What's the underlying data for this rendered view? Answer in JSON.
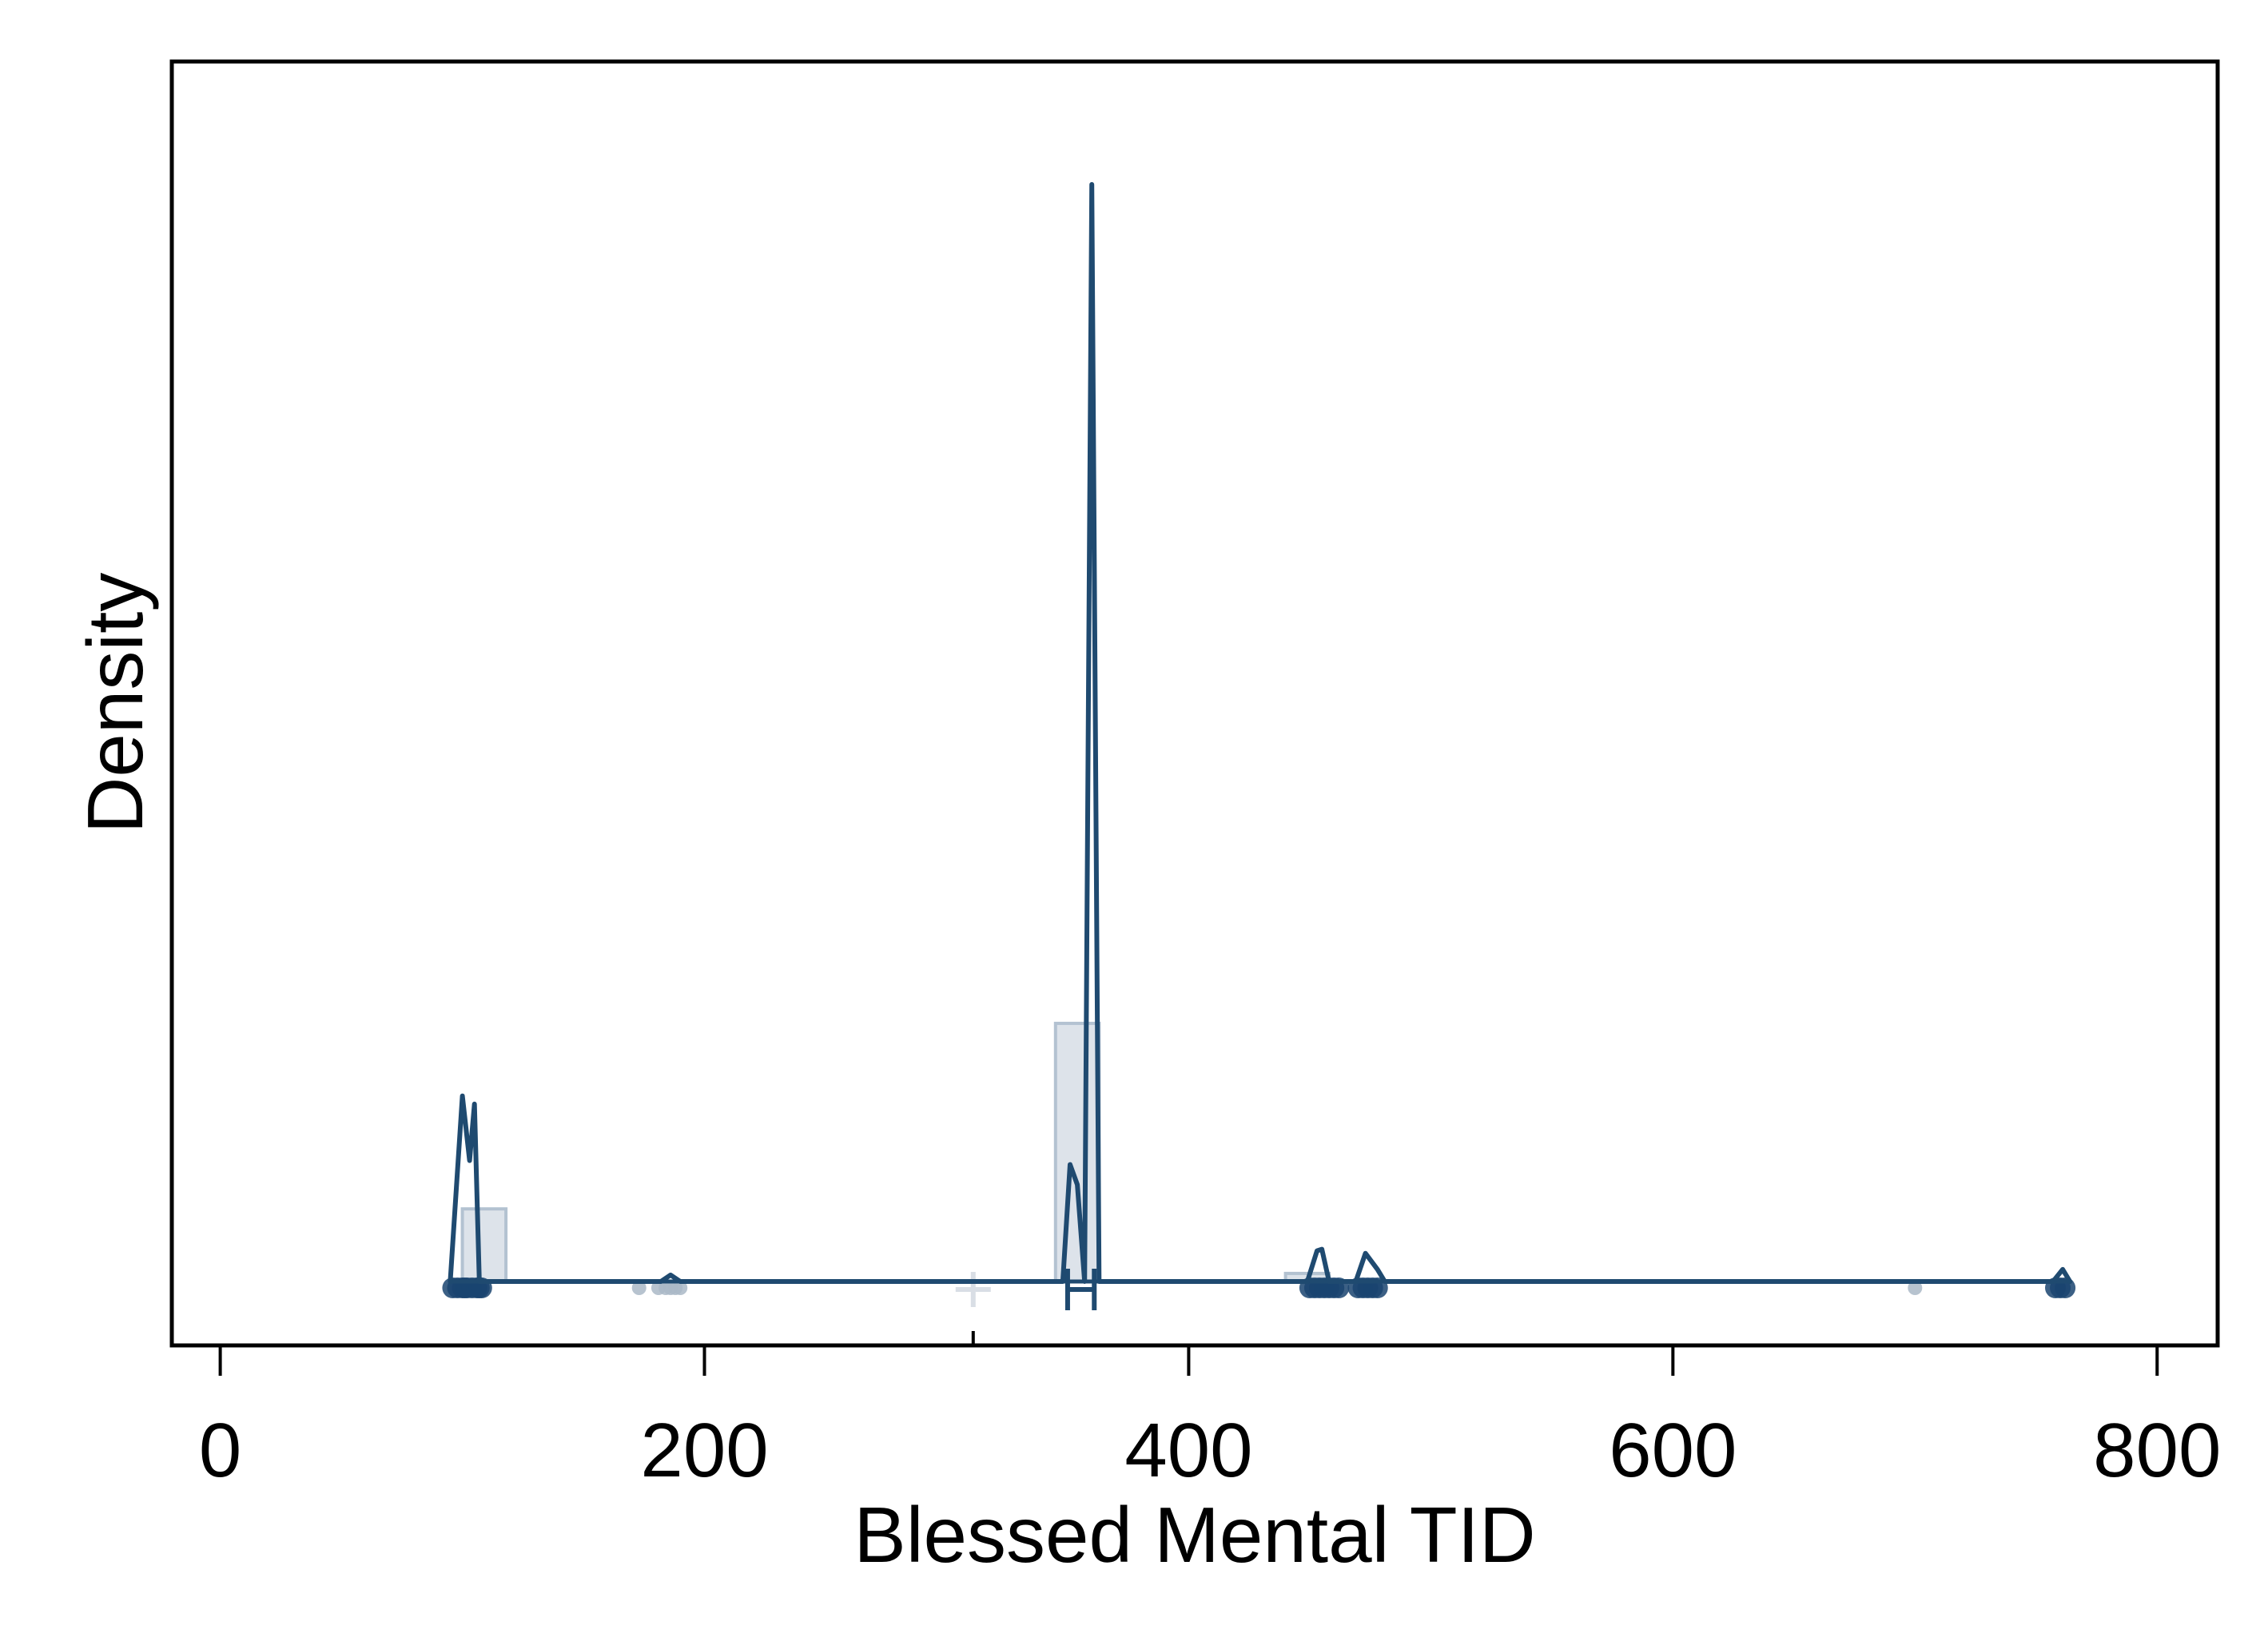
{
  "chart_data": {
    "type": "line",
    "title": "",
    "xlabel": "Blessed Mental TID",
    "ylabel": "Density",
    "xlim": [
      -20,
      825
    ],
    "ylim": [
      -0.0075,
      0.145
    ],
    "x_ticks": [
      {
        "value": 0,
        "label": "0"
      },
      {
        "value": 200,
        "label": "200"
      },
      {
        "value": 400,
        "label": "400"
      },
      {
        "value": 600,
        "label": "600"
      },
      {
        "value": 800,
        "label": "800"
      }
    ],
    "y_ticks_shown": false,
    "grid": false,
    "legend": "none",
    "histogram": [
      {
        "x0": 100,
        "x1": 118,
        "density": 0.009
      },
      {
        "x0": 345,
        "x1": 363,
        "density": 0.032
      },
      {
        "x0": 440,
        "x1": 458,
        "density": 0.001
      }
    ],
    "density_curve": [
      [
        95,
        0
      ],
      [
        100,
        0.023
      ],
      [
        103,
        0.015
      ],
      [
        105,
        0.022
      ],
      [
        107,
        0
      ],
      [
        182,
        0
      ],
      [
        186,
        0.0008
      ],
      [
        190,
        0
      ],
      [
        348,
        0
      ],
      [
        351,
        0.0145
      ],
      [
        354,
        0.012
      ],
      [
        357,
        0
      ],
      [
        360,
        0.136
      ],
      [
        363,
        0
      ],
      [
        449,
        0
      ],
      [
        453,
        0.0038
      ],
      [
        455,
        0.004
      ],
      [
        458,
        0
      ],
      [
        469,
        0
      ],
      [
        473,
        0.0035
      ],
      [
        478,
        0.0015
      ],
      [
        481,
        0
      ],
      [
        757,
        0
      ],
      [
        761,
        0.0015
      ],
      [
        764,
        0
      ]
    ],
    "rug_points": [
      96,
      98,
      100,
      101,
      102,
      104,
      106,
      107,
      108,
      173,
      181,
      184,
      186,
      188,
      190,
      450,
      452,
      454,
      456,
      458,
      460,
      462,
      470,
      472,
      474,
      476,
      478,
      700,
      758,
      760,
      762
    ],
    "boxplot": {
      "min": 96,
      "q1": 350,
      "median": 355,
      "q3": 361,
      "max": 764,
      "mean": 311
    },
    "colors": {
      "line": "#1f4a70",
      "histogram_fill": "#dde3ea",
      "histogram_edge": "#b3c2d1",
      "rug": "#1a4470",
      "rug_light": "#aab8c7",
      "mean_marker": "#d9dee5",
      "axis": "#000000"
    }
  }
}
